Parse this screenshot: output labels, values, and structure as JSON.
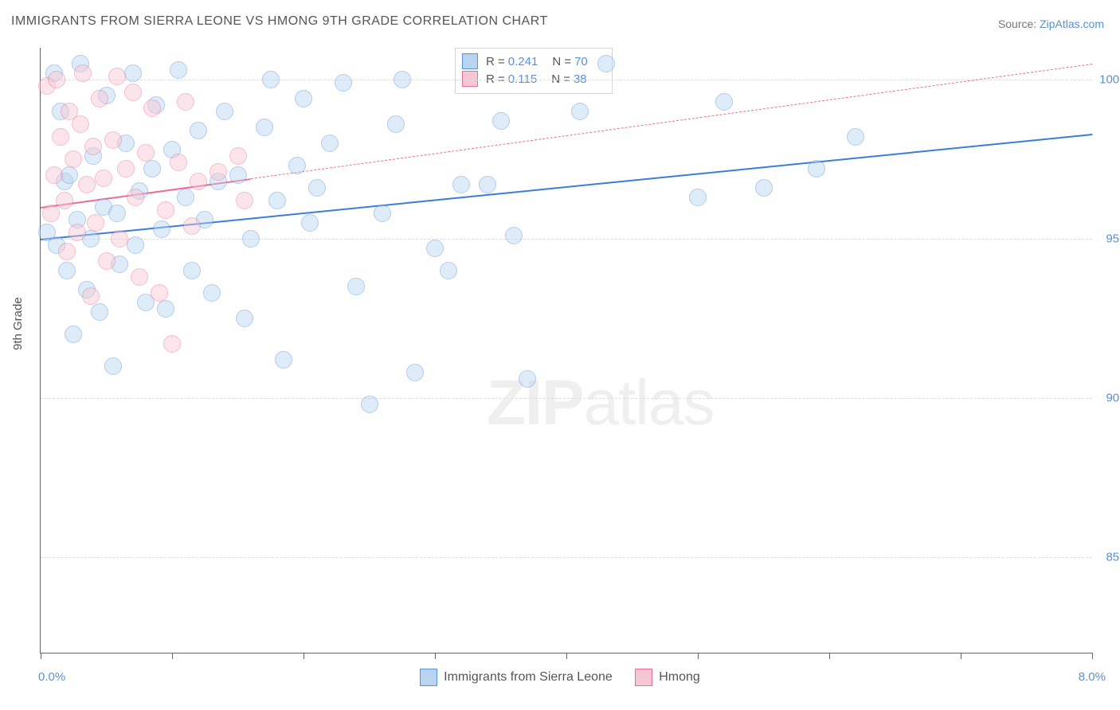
{
  "title": "IMMIGRANTS FROM SIERRA LEONE VS HMONG 9TH GRADE CORRELATION CHART",
  "source_prefix": "Source: ",
  "source_link": "ZipAtlas.com",
  "ylabel": "9th Grade",
  "watermark_bold": "ZIP",
  "watermark_rest": "atlas",
  "chart": {
    "type": "scatter",
    "xlim": [
      0,
      8
    ],
    "ylim": [
      82,
      101
    ],
    "xticks": [
      0,
      1,
      2,
      3,
      4,
      5,
      6,
      7,
      8
    ],
    "xticklabels": {
      "0": "0.0%",
      "8": "8.0%"
    },
    "yticks": [
      85,
      90,
      95,
      100
    ],
    "yticklabels": [
      "85.0%",
      "90.0%",
      "95.0%",
      "100.0%"
    ],
    "grid_color": "#dddddd",
    "background_color": "#ffffff",
    "axis_color": "#666666",
    "tick_label_color": "#5b8fd6",
    "marker_radius": 10,
    "marker_opacity": 0.45,
    "marker_stroke_opacity": 0.8
  },
  "series": [
    {
      "name": "Immigrants from Sierra Leone",
      "color_fill": "#b8d4f0",
      "color_stroke": "#5b8fd6",
      "R": "0.241",
      "N": "70",
      "regression": {
        "x0": 0,
        "y0": 95.0,
        "x1": 8,
        "y1": 98.3,
        "solid_until_x": 8,
        "color": "#3b7dd8",
        "width": 2.5
      },
      "points": [
        [
          0.05,
          95.2
        ],
        [
          0.1,
          100.2
        ],
        [
          0.12,
          94.8
        ],
        [
          0.15,
          99.0
        ],
        [
          0.18,
          96.8
        ],
        [
          0.2,
          94.0
        ],
        [
          0.22,
          97.0
        ],
        [
          0.25,
          92.0
        ],
        [
          0.28,
          95.6
        ],
        [
          0.3,
          100.5
        ],
        [
          0.35,
          93.4
        ],
        [
          0.38,
          95.0
        ],
        [
          0.4,
          97.6
        ],
        [
          0.45,
          92.7
        ],
        [
          0.48,
          96.0
        ],
        [
          0.5,
          99.5
        ],
        [
          0.55,
          91.0
        ],
        [
          0.58,
          95.8
        ],
        [
          0.6,
          94.2
        ],
        [
          0.65,
          98.0
        ],
        [
          0.7,
          100.2
        ],
        [
          0.72,
          94.8
        ],
        [
          0.75,
          96.5
        ],
        [
          0.8,
          93.0
        ],
        [
          0.85,
          97.2
        ],
        [
          0.88,
          99.2
        ],
        [
          0.92,
          95.3
        ],
        [
          0.95,
          92.8
        ],
        [
          1.0,
          97.8
        ],
        [
          1.05,
          100.3
        ],
        [
          1.1,
          96.3
        ],
        [
          1.15,
          94.0
        ],
        [
          1.2,
          98.4
        ],
        [
          1.25,
          95.6
        ],
        [
          1.3,
          93.3
        ],
        [
          1.35,
          96.8
        ],
        [
          1.4,
          99.0
        ],
        [
          1.5,
          97.0
        ],
        [
          1.55,
          92.5
        ],
        [
          1.6,
          95.0
        ],
        [
          1.7,
          98.5
        ],
        [
          1.75,
          100.0
        ],
        [
          1.8,
          96.2
        ],
        [
          1.85,
          91.2
        ],
        [
          1.95,
          97.3
        ],
        [
          2.0,
          99.4
        ],
        [
          2.05,
          95.5
        ],
        [
          2.1,
          96.6
        ],
        [
          2.2,
          98.0
        ],
        [
          2.3,
          99.9
        ],
        [
          2.4,
          93.5
        ],
        [
          2.5,
          89.8
        ],
        [
          2.6,
          95.8
        ],
        [
          2.7,
          98.6
        ],
        [
          2.75,
          100.0
        ],
        [
          2.85,
          90.8
        ],
        [
          3.0,
          94.7
        ],
        [
          3.1,
          94.0
        ],
        [
          3.2,
          96.7
        ],
        [
          3.4,
          96.7
        ],
        [
          3.5,
          98.7
        ],
        [
          3.6,
          95.1
        ],
        [
          3.7,
          90.6
        ],
        [
          4.1,
          99.0
        ],
        [
          4.3,
          100.5
        ],
        [
          5.0,
          96.3
        ],
        [
          5.2,
          99.3
        ],
        [
          5.5,
          96.6
        ],
        [
          5.9,
          97.2
        ],
        [
          6.2,
          98.2
        ]
      ]
    },
    {
      "name": "Hmong",
      "color_fill": "#f7c6d4",
      "color_stroke": "#ea6f95",
      "R": "0.115",
      "N": "38",
      "regression": {
        "x0": 0,
        "y0": 96.0,
        "x1": 8,
        "y1": 100.5,
        "solid_until_x": 1.6,
        "color": "#ea6f95",
        "width": 2
      },
      "points": [
        [
          0.05,
          99.8
        ],
        [
          0.08,
          95.8
        ],
        [
          0.1,
          97.0
        ],
        [
          0.12,
          100.0
        ],
        [
          0.15,
          98.2
        ],
        [
          0.18,
          96.2
        ],
        [
          0.2,
          94.6
        ],
        [
          0.22,
          99.0
        ],
        [
          0.25,
          97.5
        ],
        [
          0.28,
          95.2
        ],
        [
          0.3,
          98.6
        ],
        [
          0.32,
          100.2
        ],
        [
          0.35,
          96.7
        ],
        [
          0.38,
          93.2
        ],
        [
          0.4,
          97.9
        ],
        [
          0.42,
          95.5
        ],
        [
          0.45,
          99.4
        ],
        [
          0.48,
          96.9
        ],
        [
          0.5,
          94.3
        ],
        [
          0.55,
          98.1
        ],
        [
          0.58,
          100.1
        ],
        [
          0.6,
          95.0
        ],
        [
          0.65,
          97.2
        ],
        [
          0.7,
          99.6
        ],
        [
          0.72,
          96.3
        ],
        [
          0.75,
          93.8
        ],
        [
          0.8,
          97.7
        ],
        [
          0.85,
          99.1
        ],
        [
          0.9,
          93.3
        ],
        [
          0.95,
          95.9
        ],
        [
          1.0,
          91.7
        ],
        [
          1.05,
          97.4
        ],
        [
          1.1,
          99.3
        ],
        [
          1.15,
          95.4
        ],
        [
          1.2,
          96.8
        ],
        [
          1.35,
          97.1
        ],
        [
          1.5,
          97.6
        ],
        [
          1.55,
          96.2
        ]
      ]
    }
  ],
  "legend_labels": {
    "r_prefix": "R =",
    "n_prefix": "N ="
  }
}
